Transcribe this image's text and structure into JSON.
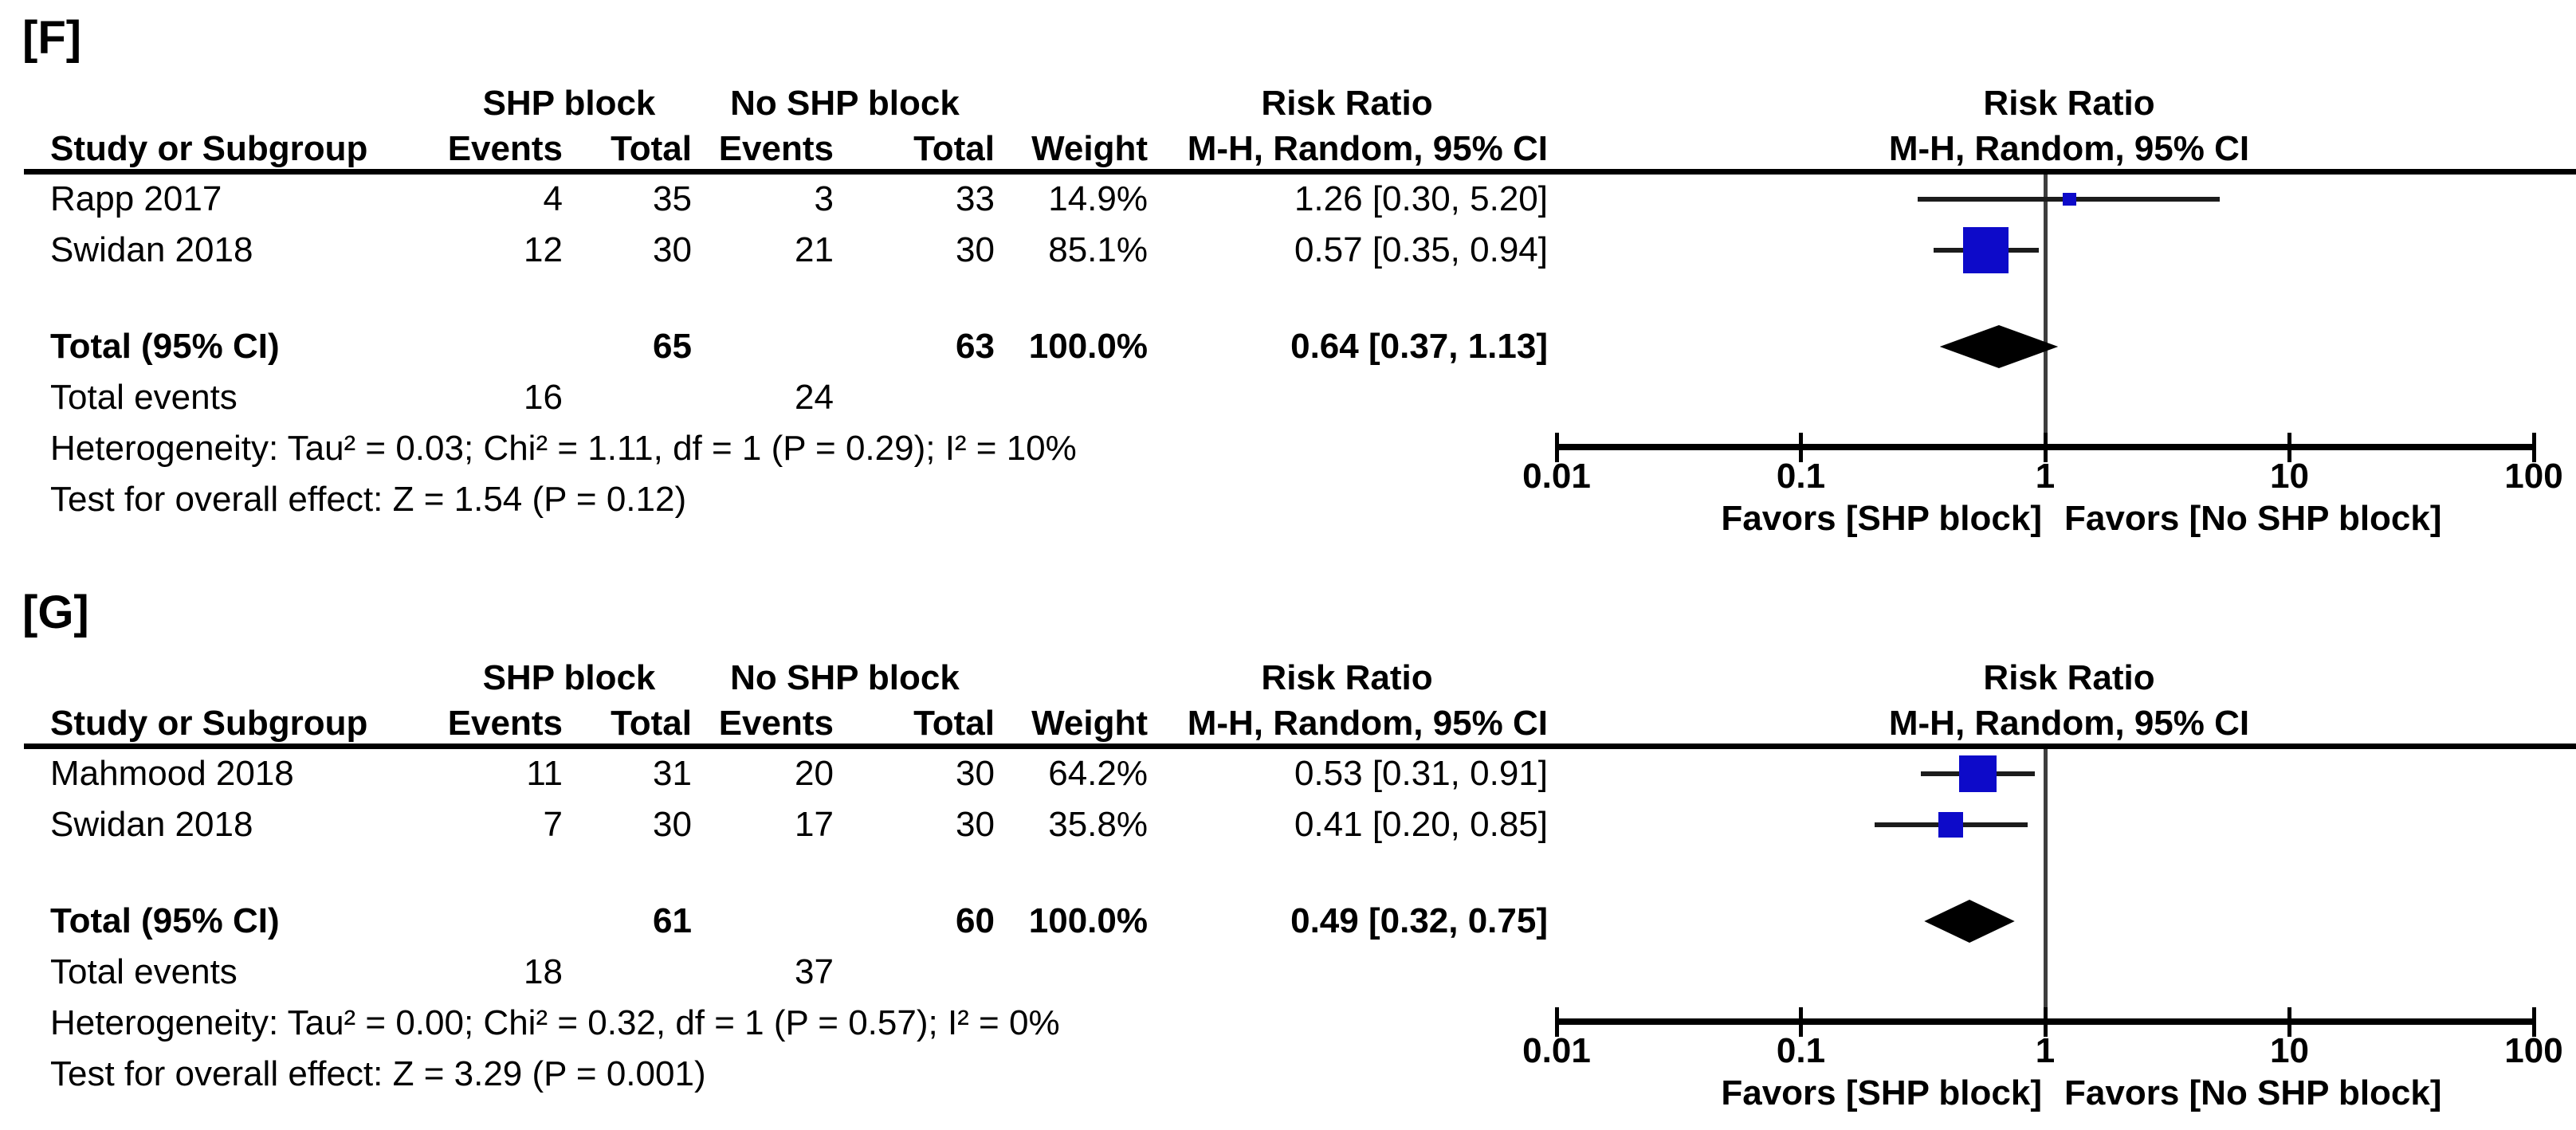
{
  "figure": {
    "background": "#ffffff",
    "colors": {
      "text": "#000000",
      "marker_blue": "#0d0ac9",
      "diamond_black": "#000000",
      "ci_line": "#1c1c1c",
      "reference_line": "#3d3d3d",
      "axis": "#000000"
    }
  },
  "panels": [
    {
      "label": "[F]",
      "table": {
        "group_headers": {
          "experimental": "SHP block",
          "control": "No SHP block",
          "effect": "Risk Ratio"
        },
        "column_headers": {
          "study": "Study or Subgroup",
          "events1": "Events",
          "total1": "Total",
          "events2": "Events",
          "total2": "Total",
          "weight": "Weight",
          "ci": "M-H, Random, 95% CI"
        },
        "rows": [
          {
            "study": "Rapp 2017",
            "events1": "4",
            "total1": "35",
            "events2": "3",
            "total2": "33",
            "weight": "14.9%",
            "ci": "1.26 [0.30, 5.20]"
          },
          {
            "study": "Swidan 2018",
            "events1": "12",
            "total1": "30",
            "events2": "21",
            "total2": "30",
            "weight": "85.1%",
            "ci": "0.57 [0.35, 0.94]"
          }
        ],
        "total_row": {
          "label": "Total (95% CI)",
          "total1": "65",
          "total2": "63",
          "weight": "100.0%",
          "ci": "0.64 [0.37, 1.13]"
        },
        "total_events": {
          "label": "Total events",
          "events1": "16",
          "events2": "24"
        },
        "heterogeneity": "Heterogeneity: Tau² = 0.03; Chi² = 1.11, df = 1 (P = 0.29); I² = 10%",
        "overall_effect": "Test for overall effect: Z = 1.54 (P = 0.12)"
      },
      "plot": {
        "headers": {
          "effect": "Risk Ratio",
          "ci": "M-H, Random, 95% CI"
        },
        "favors_left": "Favors [SHP block]",
        "favors_right": "Favors [No SHP block]"
      }
    },
    {
      "label": "[G]",
      "table": {
        "group_headers": {
          "experimental": "SHP block",
          "control": "No SHP block",
          "effect": "Risk Ratio"
        },
        "column_headers": {
          "study": "Study or Subgroup",
          "events1": "Events",
          "total1": "Total",
          "events2": "Events",
          "total2": "Total",
          "weight": "Weight",
          "ci": "M-H, Random, 95% CI"
        },
        "rows": [
          {
            "study": "Mahmood 2018",
            "events1": "11",
            "total1": "31",
            "events2": "20",
            "total2": "30",
            "weight": "64.2%",
            "ci": "0.53 [0.31, 0.91]"
          },
          {
            "study": "Swidan 2018",
            "events1": "7",
            "total1": "30",
            "events2": "17",
            "total2": "30",
            "weight": "35.8%",
            "ci": "0.41 [0.20, 0.85]"
          }
        ],
        "total_row": {
          "label": "Total (95% CI)",
          "total1": "61",
          "total2": "60",
          "weight": "100.0%",
          "ci": "0.49 [0.32, 0.75]"
        },
        "total_events": {
          "label": "Total events",
          "events1": "18",
          "events2": "37"
        },
        "heterogeneity": "Heterogeneity: Tau² = 0.00; Chi² = 0.32, df = 1 (P = 0.57); I² = 0%",
        "overall_effect": "Test for overall effect: Z = 3.29 (P = 0.001)"
      },
      "plot": {
        "headers": {
          "effect": "Risk Ratio",
          "ci": "M-H, Random, 95% CI"
        },
        "favors_left": "Favors [SHP block]",
        "favors_right": "Favors [No SHP block]"
      }
    }
  ],
  "chart_data": [
    {
      "type": "forest",
      "title": "[F]",
      "effect_measure": "Risk Ratio, M-H, Random, 95% CI",
      "x_scale": "log10",
      "x_ticks": [
        0.01,
        0.1,
        1,
        10,
        100
      ],
      "x_tick_labels": [
        "0.01",
        "0.1",
        "1",
        "10",
        "100"
      ],
      "xlim": [
        0.01,
        100
      ],
      "ref_line": 1,
      "studies": [
        {
          "name": "Rapp 2017",
          "rr": 1.26,
          "ci_low": 0.3,
          "ci_high": 5.2,
          "weight_pct": 14.9
        },
        {
          "name": "Swidan 2018",
          "rr": 0.57,
          "ci_low": 0.35,
          "ci_high": 0.94,
          "weight_pct": 85.1
        }
      ],
      "total": {
        "rr": 0.64,
        "ci_low": 0.37,
        "ci_high": 1.13
      },
      "heterogeneity": {
        "tau2": 0.03,
        "chi2": 1.11,
        "df": 1,
        "p": 0.29,
        "i2_pct": 10
      },
      "overall_effect": {
        "z": 1.54,
        "p": 0.12
      }
    },
    {
      "type": "forest",
      "title": "[G]",
      "effect_measure": "Risk Ratio, M-H, Random, 95% CI",
      "x_scale": "log10",
      "x_ticks": [
        0.01,
        0.1,
        1,
        10,
        100
      ],
      "x_tick_labels": [
        "0.01",
        "0.1",
        "1",
        "10",
        "100"
      ],
      "xlim": [
        0.01,
        100
      ],
      "ref_line": 1,
      "studies": [
        {
          "name": "Mahmood 2018",
          "rr": 0.53,
          "ci_low": 0.31,
          "ci_high": 0.91,
          "weight_pct": 64.2
        },
        {
          "name": "Swidan 2018",
          "rr": 0.41,
          "ci_low": 0.2,
          "ci_high": 0.85,
          "weight_pct": 35.8
        }
      ],
      "total": {
        "rr": 0.49,
        "ci_low": 0.32,
        "ci_high": 0.75
      },
      "heterogeneity": {
        "tau2": 0.0,
        "chi2": 0.32,
        "df": 1,
        "p": 0.57,
        "i2_pct": 0
      },
      "overall_effect": {
        "z": 3.29,
        "p": 0.001
      }
    }
  ]
}
